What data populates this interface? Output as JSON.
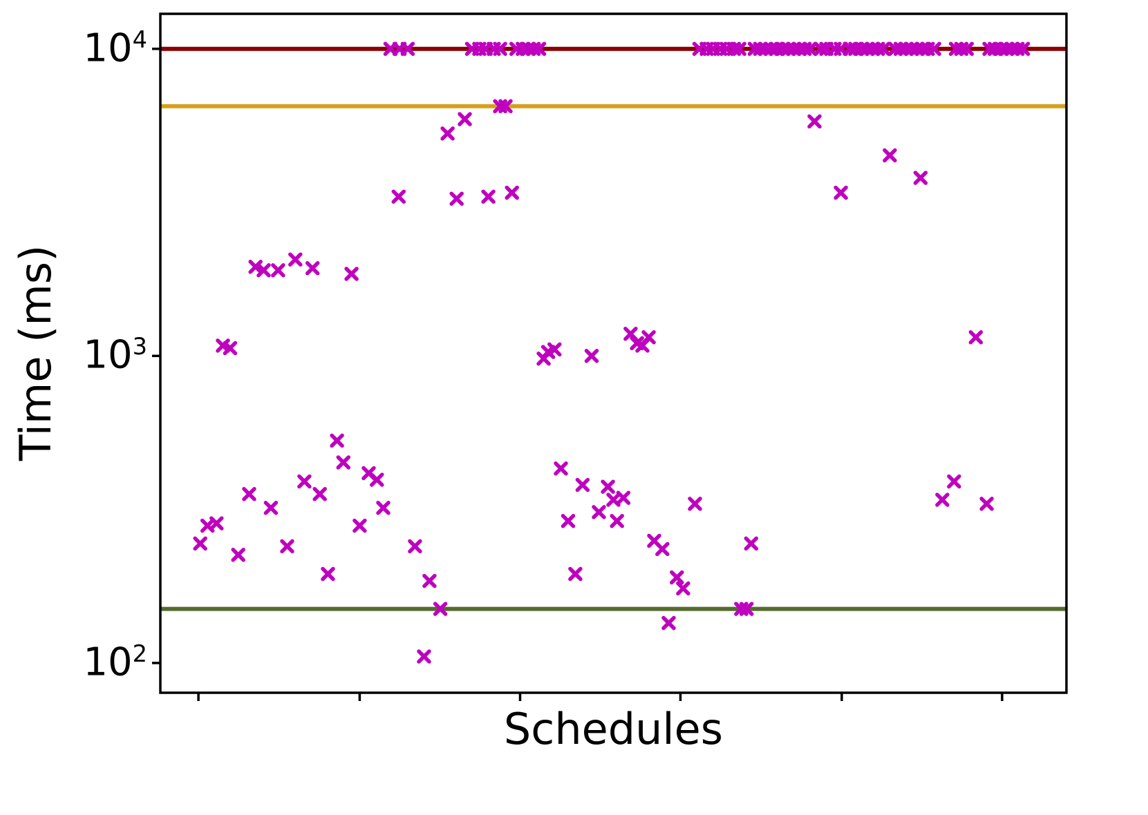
{
  "chart_data": {
    "type": "scatter",
    "title": "",
    "xlabel": "Schedules",
    "ylabel": "Time (ms)",
    "y_scale": "log",
    "ylim": [
      80,
      13000
    ],
    "grid": false,
    "legend": null,
    "y_ticks": [
      {
        "value": 100,
        "base": "10",
        "exponent": "2"
      },
      {
        "value": 1000,
        "base": "10",
        "exponent": "3"
      },
      {
        "value": 10000,
        "base": "10",
        "exponent": "4"
      }
    ],
    "x_ticks": [
      0.042,
      0.22,
      0.397,
      0.574,
      0.752,
      0.929
    ],
    "ref_lines": [
      {
        "name": "dark-red",
        "value": 10000,
        "color": "#8B0000"
      },
      {
        "name": "orange",
        "value": 6500,
        "color": "#D6A019"
      },
      {
        "name": "dark-olive",
        "value": 150,
        "color": "#556B2F"
      }
    ],
    "marker": {
      "shape": "X",
      "color": "#BF00BF"
    },
    "points": [
      [
        0.044,
        245
      ],
      [
        0.052,
        280
      ],
      [
        0.062,
        285
      ],
      [
        0.069,
        1080
      ],
      [
        0.077,
        1060
      ],
      [
        0.086,
        225
      ],
      [
        0.098,
        355
      ],
      [
        0.105,
        1950
      ],
      [
        0.114,
        1900
      ],
      [
        0.122,
        320
      ],
      [
        0.13,
        1900
      ],
      [
        0.14,
        240
      ],
      [
        0.149,
        2060
      ],
      [
        0.159,
        390
      ],
      [
        0.168,
        1930
      ],
      [
        0.176,
        355
      ],
      [
        0.185,
        195
      ],
      [
        0.195,
        530
      ],
      [
        0.202,
        450
      ],
      [
        0.211,
        1850
      ],
      [
        0.22,
        280
      ],
      [
        0.23,
        415
      ],
      [
        0.239,
        395
      ],
      [
        0.246,
        320
      ],
      [
        0.254,
        10000
      ],
      [
        0.264,
        10000
      ],
      [
        0.273,
        10000
      ],
      [
        0.263,
        3300
      ],
      [
        0.281,
        240
      ],
      [
        0.291,
        105
      ],
      [
        0.297,
        185
      ],
      [
        0.309,
        150
      ],
      [
        0.317,
        5300
      ],
      [
        0.327,
        3250
      ],
      [
        0.336,
        5900
      ],
      [
        0.344,
        10000
      ],
      [
        0.352,
        10000
      ],
      [
        0.359,
        10000
      ],
      [
        0.362,
        3300
      ],
      [
        0.368,
        10000
      ],
      [
        0.375,
        10000
      ],
      [
        0.375,
        6500
      ],
      [
        0.381,
        6500
      ],
      [
        0.388,
        3400
      ],
      [
        0.393,
        10000
      ],
      [
        0.4,
        10000
      ],
      [
        0.406,
        10000
      ],
      [
        0.412,
        10000
      ],
      [
        0.418,
        10000
      ],
      [
        0.423,
        980
      ],
      [
        0.428,
        1030
      ],
      [
        0.435,
        1050
      ],
      [
        0.442,
        430
      ],
      [
        0.45,
        290
      ],
      [
        0.458,
        195
      ],
      [
        0.466,
        380
      ],
      [
        0.476,
        1000
      ],
      [
        0.484,
        310
      ],
      [
        0.494,
        375
      ],
      [
        0.5,
        340
      ],
      [
        0.504,
        290
      ],
      [
        0.511,
        345
      ],
      [
        0.519,
        1180
      ],
      [
        0.526,
        1100
      ],
      [
        0.532,
        1080
      ],
      [
        0.539,
        1150
      ],
      [
        0.545,
        250
      ],
      [
        0.554,
        235
      ],
      [
        0.561,
        135
      ],
      [
        0.57,
        190
      ],
      [
        0.577,
        175
      ],
      [
        0.59,
        330
      ],
      [
        0.595,
        10000
      ],
      [
        0.603,
        10000
      ],
      [
        0.61,
        10000
      ],
      [
        0.618,
        10000
      ],
      [
        0.625,
        10000
      ],
      [
        0.633,
        10000
      ],
      [
        0.639,
        10000
      ],
      [
        0.641,
        150
      ],
      [
        0.647,
        150
      ],
      [
        0.652,
        245
      ],
      [
        0.656,
        10000
      ],
      [
        0.662,
        10000
      ],
      [
        0.668,
        10000
      ],
      [
        0.674,
        10000
      ],
      [
        0.68,
        10000
      ],
      [
        0.687,
        10000
      ],
      [
        0.693,
        10000
      ],
      [
        0.699,
        10000
      ],
      [
        0.705,
        10000
      ],
      [
        0.711,
        10000
      ],
      [
        0.717,
        10000
      ],
      [
        0.722,
        5800
      ],
      [
        0.729,
        10000
      ],
      [
        0.735,
        10000
      ],
      [
        0.744,
        10000
      ],
      [
        0.751,
        10000
      ],
      [
        0.761,
        10000
      ],
      [
        0.767,
        10000
      ],
      [
        0.774,
        10000
      ],
      [
        0.78,
        10000
      ],
      [
        0.786,
        10000
      ],
      [
        0.792,
        10000
      ],
      [
        0.798,
        10000
      ],
      [
        0.751,
        3400
      ],
      [
        0.805,
        4500
      ],
      [
        0.811,
        10000
      ],
      [
        0.817,
        10000
      ],
      [
        0.823,
        10000
      ],
      [
        0.829,
        10000
      ],
      [
        0.835,
        10000
      ],
      [
        0.841,
        10000
      ],
      [
        0.847,
        10000
      ],
      [
        0.854,
        10000
      ],
      [
        0.839,
        3800
      ],
      [
        0.863,
        340
      ],
      [
        0.876,
        390
      ],
      [
        0.878,
        10000
      ],
      [
        0.884,
        10000
      ],
      [
        0.89,
        10000
      ],
      [
        0.9,
        1150
      ],
      [
        0.912,
        330
      ],
      [
        0.915,
        10000
      ],
      [
        0.921,
        10000
      ],
      [
        0.928,
        10000
      ],
      [
        0.934,
        10000
      ],
      [
        0.94,
        10000
      ],
      [
        0.946,
        10000
      ],
      [
        0.952,
        10000
      ]
    ]
  }
}
